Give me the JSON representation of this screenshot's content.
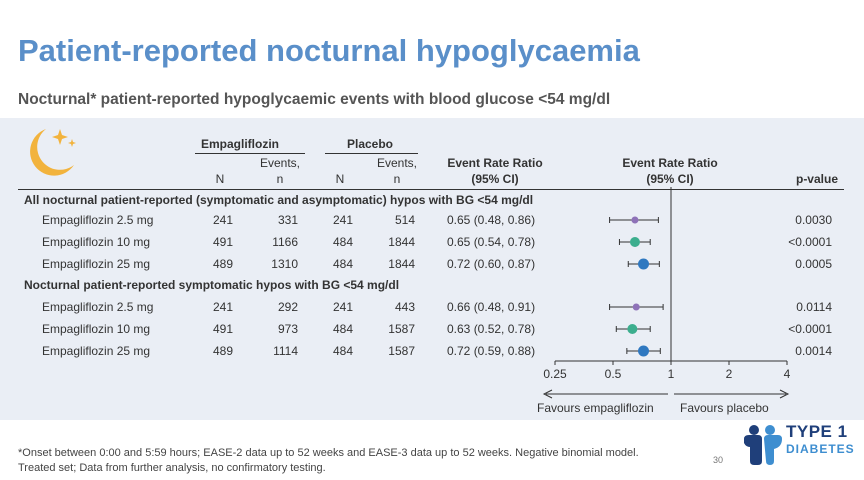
{
  "title": "Patient-reported nocturnal hypoglycaemia",
  "subtitle": "Nocturnal* patient-reported hypoglycaemic events with blood glucose <54 mg/dl",
  "headers": {
    "empagliflozin_group": "Empagliflozin",
    "placebo_group": "Placebo",
    "n": "N",
    "events_line1": "Events,",
    "events_line2": "n",
    "err_table_line1": "Event Rate Ratio",
    "err_table_line2": "(95% CI)",
    "err_plot_line1": "Event Rate Ratio",
    "err_plot_line2": "(95% CI)",
    "pvalue": "p-value"
  },
  "sections": [
    {
      "label": "All nocturnal patient-reported (symptomatic and asymptomatic) hypos with BG <54 mg/dl",
      "rows": [
        {
          "treatment": "Empagliflozin 2.5 mg",
          "empa_n": "241",
          "empa_events": "331",
          "pbo_n": "241",
          "pbo_events": "514",
          "err": "0.65 (0.48, 0.86)",
          "pvalue": "0.0030"
        },
        {
          "treatment": "Empagliflozin 10 mg",
          "empa_n": "491",
          "empa_events": "1166",
          "pbo_n": "484",
          "pbo_events": "1844",
          "err": "0.65 (0.54, 0.78)",
          "pvalue": "<0.0001"
        },
        {
          "treatment": "Empagliflozin 25 mg",
          "empa_n": "489",
          "empa_events": "1310",
          "pbo_n": "484",
          "pbo_events": "1844",
          "err": "0.72 (0.60, 0.87)",
          "pvalue": "0.0005"
        }
      ]
    },
    {
      "label": "Nocturnal patient-reported symptomatic hypos with BG <54 mg/dl",
      "rows": [
        {
          "treatment": "Empagliflozin 2.5 mg",
          "empa_n": "241",
          "empa_events": "292",
          "pbo_n": "241",
          "pbo_events": "443",
          "err": "0.66 (0.48, 0.91)",
          "pvalue": "0.0114"
        },
        {
          "treatment": "Empagliflozin 10 mg",
          "empa_n": "491",
          "empa_events": "973",
          "pbo_n": "484",
          "pbo_events": "1587",
          "err": "0.63 (0.52, 0.78)",
          "pvalue": "<0.0001"
        },
        {
          "treatment": "Empagliflozin 25 mg",
          "empa_n": "489",
          "empa_events": "1114",
          "pbo_n": "484",
          "pbo_events": "1587",
          "err": "0.72 (0.59, 0.88)",
          "pvalue": "0.0014"
        }
      ]
    }
  ],
  "chart_data": {
    "type": "scatter",
    "subtype": "forest-plot",
    "x_scale": "log",
    "xlim": [
      0.25,
      4
    ],
    "reference_line": 1,
    "xticks": [
      0.25,
      0.5,
      1,
      2,
      4
    ],
    "tick_labels": [
      "0.25",
      "0.5",
      "1",
      "2",
      "4"
    ],
    "favours_left": "Favours empagliflozin",
    "favours_right": "Favours placebo",
    "points": [
      {
        "est": 0.65,
        "lo": 0.48,
        "hi": 0.86,
        "color": "#8e72b8",
        "size": "small"
      },
      {
        "est": 0.65,
        "lo": 0.54,
        "hi": 0.78,
        "color": "#3cae8e",
        "size": "medium"
      },
      {
        "est": 0.72,
        "lo": 0.6,
        "hi": 0.87,
        "color": "#2f78c0",
        "size": "large"
      },
      {
        "est": 0.66,
        "lo": 0.48,
        "hi": 0.91,
        "color": "#8e72b8",
        "size": "small"
      },
      {
        "est": 0.63,
        "lo": 0.52,
        "hi": 0.78,
        "color": "#3cae8e",
        "size": "medium"
      },
      {
        "est": 0.72,
        "lo": 0.59,
        "hi": 0.88,
        "color": "#2f78c0",
        "size": "large"
      }
    ]
  },
  "footnote": "*Onset between 0:00 and 5:59 hours; EASE-2 data up to 52 weeks and EASE-3 data up to 52 weeks. Negative binomial model. Treated set; Data from further analysis, no confirmatory testing.",
  "page_number": "30",
  "logo": {
    "line1": "TYPE 1",
    "line2": "DIABETES"
  },
  "colors": {
    "title": "#5a8fc9",
    "panel": "#eaeef5",
    "logo_dark": "#1f3f7a",
    "logo_light": "#3e8ed0",
    "moon": "#f2b33d"
  }
}
